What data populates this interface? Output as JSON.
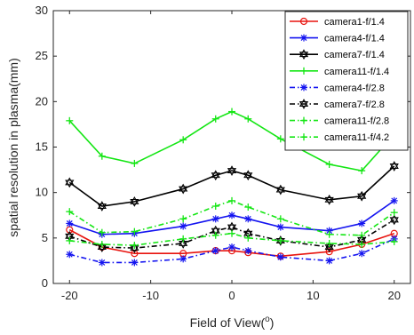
{
  "chart_data": {
    "type": "line",
    "xlabel": "Field of View(",
    "xlabel_sup": "o",
    "xlabel_close": ")",
    "ylabel": "spatial resolution in plasma(mm)",
    "xlim": [
      -22,
      22
    ],
    "ylim": [
      0,
      30
    ],
    "xticks": [
      -20,
      -10,
      0,
      10,
      20
    ],
    "xtick_labels": [
      "-20",
      "-10",
      "0",
      "10",
      "20"
    ],
    "yticks": [
      0,
      5,
      10,
      15,
      20,
      25,
      30
    ],
    "ytick_labels": [
      "0",
      "5",
      "10",
      "15",
      "20",
      "25",
      "30"
    ],
    "grid": false,
    "legend_position": "top-right",
    "x": [
      -20,
      -16,
      -12,
      -6,
      -2,
      0,
      2,
      6,
      12,
      16,
      20
    ],
    "series": [
      {
        "name": "camera1-f/1.4",
        "color": "#e8140f",
        "dash": "solid",
        "marker": "circle",
        "values": [
          5.9,
          4.0,
          3.3,
          3.3,
          3.6,
          3.6,
          3.4,
          3.0,
          3.5,
          4.3,
          5.5
        ]
      },
      {
        "name": "camera4-f/1.4",
        "color": "#1414f0",
        "dash": "solid",
        "marker": "star",
        "values": [
          6.6,
          5.4,
          5.5,
          6.3,
          7.1,
          7.5,
          7.1,
          6.2,
          5.8,
          6.6,
          9.1
        ]
      },
      {
        "name": "camera7-f/1.4",
        "color": "#000000",
        "dash": "solid",
        "marker": "hexagram",
        "values": [
          11.1,
          8.5,
          9.0,
          10.4,
          11.9,
          12.4,
          11.9,
          10.3,
          9.2,
          9.6,
          12.9
        ]
      },
      {
        "name": "camera11-f/1.4",
        "color": "#14e614",
        "dash": "solid",
        "marker": "plus",
        "values": [
          17.9,
          14.0,
          13.2,
          15.8,
          18.1,
          18.9,
          18.1,
          15.9,
          13.1,
          12.4,
          16.4
        ]
      },
      {
        "name": "camera4-f/2.8",
        "color": "#1414f0",
        "dash": "dashdot",
        "marker": "star",
        "values": [
          3.2,
          2.3,
          2.3,
          2.7,
          3.6,
          4.0,
          3.6,
          2.9,
          2.5,
          3.3,
          4.9
        ]
      },
      {
        "name": "camera7-f/2.8",
        "color": "#000000",
        "dash": "dashdot",
        "marker": "hexagram",
        "values": [
          5.2,
          4.0,
          3.9,
          4.4,
          5.8,
          6.2,
          5.5,
          4.7,
          4.0,
          4.8,
          7.0
        ]
      },
      {
        "name": "camera11-f/2.8",
        "color": "#14e614",
        "dash": "dashdot",
        "marker": "plus",
        "values": [
          7.9,
          5.6,
          5.7,
          7.1,
          8.5,
          9.1,
          8.4,
          7.1,
          5.4,
          5.3,
          7.8
        ]
      },
      {
        "name": "camera11-f/4.2",
        "color": "#14e614",
        "dash": "dashdot",
        "marker": "plus",
        "values": [
          4.7,
          4.3,
          4.2,
          4.9,
          5.3,
          5.5,
          5.0,
          4.7,
          4.4,
          4.3,
          4.6
        ]
      }
    ]
  }
}
